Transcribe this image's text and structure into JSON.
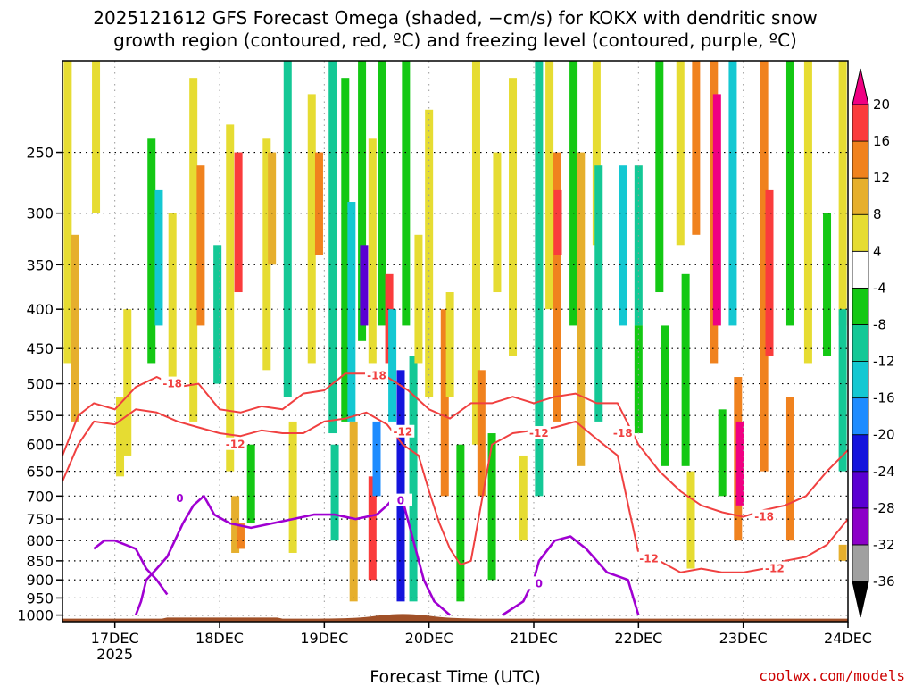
{
  "title": {
    "line1": "2025121612 GFS Forecast Omega (shaded, −cm/s) for KOKX with dendritic snow",
    "line2": "growth region (contoured, red, ºC) and freezing level (contoured, purple, ºC)"
  },
  "credit": "coolwx.com/models",
  "chart_data": {
    "type": "heatmap",
    "title": "2025121612 GFS Forecast Omega (shaded, −cm/s) for KOKX with dendritic snow growth region (contoured, red, ºC) and freezing level (contoured, purple, ºC)",
    "xlabel": "Forecast Time (UTC)",
    "ylabel": "",
    "x_range": [
      16.5,
      24.0
    ],
    "x_ticks": [
      {
        "value": 17,
        "label": "17DEC",
        "sublabel": "2025"
      },
      {
        "value": 18,
        "label": "18DEC",
        "sublabel": ""
      },
      {
        "value": 19,
        "label": "19DEC",
        "sublabel": ""
      },
      {
        "value": 20,
        "label": "20DEC",
        "sublabel": ""
      },
      {
        "value": 21,
        "label": "21DEC",
        "sublabel": ""
      },
      {
        "value": 22,
        "label": "22DEC",
        "sublabel": ""
      },
      {
        "value": 23,
        "label": "23DEC",
        "sublabel": ""
      },
      {
        "value": 24,
        "label": "24DEC",
        "sublabel": ""
      }
    ],
    "y_axis": {
      "type": "pressure",
      "reversed": true,
      "range": [
        1020,
        190
      ],
      "ticks": [
        250,
        300,
        350,
        400,
        450,
        500,
        550,
        600,
        650,
        700,
        750,
        800,
        850,
        900,
        950,
        1000
      ]
    },
    "colorbar": {
      "levels": [
        -36,
        -32,
        -28,
        -24,
        -20,
        -16,
        -12,
        -8,
        -4,
        4,
        8,
        12,
        16,
        20
      ],
      "colors": [
        "#000000",
        "#a0a0a0",
        "#8c00c8",
        "#5a00d2",
        "#1414dc",
        "#1e8cff",
        "#14c8d2",
        "#14c896",
        "#14c814",
        "#ffffff",
        "#e6dc32",
        "#e6af2d",
        "#f0821e",
        "#fa3c3c",
        "#f00082"
      ]
    },
    "omega_cells": [
      {
        "t": 16.55,
        "p1": 190,
        "p2": 470,
        "v": 4
      },
      {
        "t": 16.62,
        "p1": 320,
        "p2": 560,
        "v": 8
      },
      {
        "t": 16.82,
        "p1": 190,
        "p2": 300,
        "v": 4
      },
      {
        "t": 17.05,
        "p1": 520,
        "p2": 660,
        "v": 6
      },
      {
        "t": 17.12,
        "p1": 400,
        "p2": 620,
        "v": 4
      },
      {
        "t": 17.35,
        "p1": 240,
        "p2": 470,
        "v": -8
      },
      {
        "t": 17.42,
        "p1": 280,
        "p2": 420,
        "v": -14
      },
      {
        "t": 17.55,
        "p1": 300,
        "p2": 500,
        "v": 6
      },
      {
        "t": 17.75,
        "p1": 200,
        "p2": 560,
        "v": 6
      },
      {
        "t": 17.82,
        "p1": 260,
        "p2": 420,
        "v": 12
      },
      {
        "t": 17.98,
        "p1": 330,
        "p2": 500,
        "v": -10
      },
      {
        "t": 18.1,
        "p1": 230,
        "p2": 650,
        "v": 6
      },
      {
        "t": 18.18,
        "p1": 250,
        "p2": 380,
        "v": 16
      },
      {
        "t": 18.15,
        "p1": 700,
        "p2": 830,
        "v": 10
      },
      {
        "t": 18.2,
        "p1": 760,
        "p2": 820,
        "v": 14
      },
      {
        "t": 18.3,
        "p1": 600,
        "p2": 760,
        "v": -8
      },
      {
        "t": 18.45,
        "p1": 240,
        "p2": 480,
        "v": 6
      },
      {
        "t": 18.5,
        "p1": 250,
        "p2": 350,
        "v": 10
      },
      {
        "t": 18.65,
        "p1": 190,
        "p2": 520,
        "v": -9
      },
      {
        "t": 18.7,
        "p1": 560,
        "p2": 830,
        "v": 6
      },
      {
        "t": 18.88,
        "p1": 210,
        "p2": 470,
        "v": 6
      },
      {
        "t": 18.95,
        "p1": 250,
        "p2": 340,
        "v": 12
      },
      {
        "t": 19.08,
        "p1": 190,
        "p2": 580,
        "v": -9
      },
      {
        "t": 19.1,
        "p1": 600,
        "p2": 800,
        "v": -12
      },
      {
        "t": 19.2,
        "p1": 200,
        "p2": 560,
        "v": -8
      },
      {
        "t": 19.26,
        "p1": 290,
        "p2": 560,
        "v": -15
      },
      {
        "t": 19.28,
        "p1": 560,
        "p2": 960,
        "v": 8
      },
      {
        "t": 19.36,
        "p1": 190,
        "p2": 440,
        "v": -8
      },
      {
        "t": 19.38,
        "p1": 330,
        "p2": 420,
        "v": -26
      },
      {
        "t": 19.46,
        "p1": 240,
        "p2": 470,
        "v": 6
      },
      {
        "t": 19.46,
        "p1": 660,
        "p2": 900,
        "v": 16
      },
      {
        "t": 19.5,
        "p1": 560,
        "p2": 700,
        "v": -20
      },
      {
        "t": 19.55,
        "p1": 190,
        "p2": 420,
        "v": -8
      },
      {
        "t": 19.62,
        "p1": 360,
        "p2": 470,
        "v": 16
      },
      {
        "t": 19.65,
        "p1": 400,
        "p2": 560,
        "v": -14
      },
      {
        "t": 19.73,
        "p1": 480,
        "p2": 960,
        "v": -22
      },
      {
        "t": 19.78,
        "p1": 190,
        "p2": 420,
        "v": -8
      },
      {
        "t": 19.85,
        "p1": 460,
        "p2": 960,
        "v": -12
      },
      {
        "t": 19.9,
        "p1": 320,
        "p2": 470,
        "v": 6
      },
      {
        "t": 20.0,
        "p1": 220,
        "p2": 520,
        "v": 6
      },
      {
        "t": 20.15,
        "p1": 400,
        "p2": 700,
        "v": 14
      },
      {
        "t": 20.2,
        "p1": 380,
        "p2": 520,
        "v": 6
      },
      {
        "t": 20.3,
        "p1": 600,
        "p2": 960,
        "v": -8
      },
      {
        "t": 20.45,
        "p1": 190,
        "p2": 600,
        "v": 6
      },
      {
        "t": 20.5,
        "p1": 480,
        "p2": 700,
        "v": 12
      },
      {
        "t": 20.6,
        "p1": 580,
        "p2": 900,
        "v": -8
      },
      {
        "t": 20.65,
        "p1": 250,
        "p2": 380,
        "v": 6
      },
      {
        "t": 20.8,
        "p1": 200,
        "p2": 460,
        "v": 6
      },
      {
        "t": 20.9,
        "p1": 620,
        "p2": 800,
        "v": 6
      },
      {
        "t": 21.05,
        "p1": 190,
        "p2": 700,
        "v": -9
      },
      {
        "t": 21.15,
        "p1": 190,
        "p2": 400,
        "v": 6
      },
      {
        "t": 21.22,
        "p1": 250,
        "p2": 560,
        "v": 12
      },
      {
        "t": 21.23,
        "p1": 280,
        "p2": 340,
        "v": 18
      },
      {
        "t": 21.38,
        "p1": 190,
        "p2": 420,
        "v": -8
      },
      {
        "t": 21.45,
        "p1": 250,
        "p2": 640,
        "v": 8
      },
      {
        "t": 21.6,
        "p1": 190,
        "p2": 330,
        "v": 4
      },
      {
        "t": 21.62,
        "p1": 260,
        "p2": 560,
        "v": -9
      },
      {
        "t": 21.85,
        "p1": 260,
        "p2": 420,
        "v": -14
      },
      {
        "t": 22.0,
        "p1": 260,
        "p2": 420,
        "v": -9
      },
      {
        "t": 22.0,
        "p1": 420,
        "p2": 580,
        "v": -8
      },
      {
        "t": 22.2,
        "p1": 190,
        "p2": 380,
        "v": -8
      },
      {
        "t": 22.25,
        "p1": 420,
        "p2": 640,
        "v": -8
      },
      {
        "t": 22.4,
        "p1": 190,
        "p2": 330,
        "v": 6
      },
      {
        "t": 22.45,
        "p1": 360,
        "p2": 640,
        "v": -8
      },
      {
        "t": 22.5,
        "p1": 650,
        "p2": 870,
        "v": 6
      },
      {
        "t": 22.55,
        "p1": 190,
        "p2": 320,
        "v": 12
      },
      {
        "t": 22.72,
        "p1": 190,
        "p2": 470,
        "v": 12
      },
      {
        "t": 22.75,
        "p1": 210,
        "p2": 420,
        "v": 20
      },
      {
        "t": 22.8,
        "p1": 540,
        "p2": 700,
        "v": -8
      },
      {
        "t": 22.9,
        "p1": 190,
        "p2": 420,
        "v": -14
      },
      {
        "t": 22.95,
        "p1": 490,
        "p2": 800,
        "v": 12
      },
      {
        "t": 22.97,
        "p1": 560,
        "p2": 720,
        "v": 20
      },
      {
        "t": 23.2,
        "p1": 190,
        "p2": 650,
        "v": 12
      },
      {
        "t": 23.25,
        "p1": 280,
        "p2": 460,
        "v": 16
      },
      {
        "t": 23.45,
        "p1": 190,
        "p2": 420,
        "v": -8
      },
      {
        "t": 23.45,
        "p1": 520,
        "p2": 800,
        "v": 12
      },
      {
        "t": 23.62,
        "p1": 190,
        "p2": 470,
        "v": 6
      },
      {
        "t": 23.8,
        "p1": 300,
        "p2": 460,
        "v": -8
      },
      {
        "t": 23.95,
        "p1": 190,
        "p2": 420,
        "v": 6
      },
      {
        "t": 23.95,
        "p1": 400,
        "p2": 650,
        "v": -9
      },
      {
        "t": 23.95,
        "p1": 810,
        "p2": 850,
        "v": 10
      }
    ],
    "contours": [
      {
        "name": "dgz-top",
        "level": -18,
        "color": "#f04040",
        "t": [
          16.5,
          16.65,
          16.8,
          17.0,
          17.2,
          17.4,
          17.6,
          17.8,
          18.0,
          18.2,
          18.4,
          18.6,
          18.8,
          19.0,
          19.2,
          19.4,
          19.6,
          19.8,
          20.0,
          20.2,
          20.4,
          20.6,
          20.8,
          21.0,
          21.2,
          21.4,
          21.6,
          21.8,
          22.0,
          22.2,
          22.4,
          22.6,
          22.8,
          23.0,
          23.2,
          23.4,
          23.6,
          23.8,
          24.0
        ],
        "p": [
          620,
          550,
          530,
          540,
          505,
          490,
          505,
          500,
          540,
          545,
          535,
          540,
          515,
          510,
          485,
          485,
          490,
          510,
          540,
          555,
          530,
          530,
          520,
          530,
          520,
          515,
          530,
          530,
          600,
          650,
          690,
          720,
          735,
          745,
          730,
          720,
          700,
          650,
          610
        ]
      },
      {
        "name": "dgz-bottom",
        "level": -12,
        "color": "#f04040",
        "t": [
          16.5,
          16.65,
          16.8,
          17.0,
          17.2,
          17.4,
          17.6,
          17.8,
          18.0,
          18.2,
          18.4,
          18.6,
          18.8,
          19.0,
          19.2,
          19.4,
          19.6,
          19.75,
          19.9,
          20.0,
          20.1,
          20.2,
          20.3,
          20.4,
          20.6,
          20.8,
          21.0,
          21.2,
          21.4,
          21.6,
          21.8,
          22.0,
          22.2,
          22.4,
          22.6,
          22.8,
          23.0,
          23.2,
          23.4,
          23.6,
          23.8,
          24.0
        ],
        "p": [
          670,
          600,
          560,
          565,
          540,
          545,
          560,
          570,
          580,
          585,
          575,
          580,
          580,
          560,
          555,
          545,
          565,
          600,
          620,
          690,
          760,
          820,
          860,
          850,
          600,
          580,
          575,
          570,
          560,
          590,
          620,
          830,
          850,
          880,
          870,
          880,
          880,
          870,
          850,
          840,
          810,
          750
        ]
      },
      {
        "name": "freezing-level",
        "level": 0,
        "color": "#a000d2",
        "t": [
          17.2,
          17.25,
          17.3,
          17.4,
          17.5,
          17.65,
          17.75,
          17.85,
          17.95,
          18.1,
          18.3,
          18.5,
          18.7,
          18.9,
          19.0,
          19.1,
          19.3,
          19.5,
          19.6,
          19.68,
          19.75,
          19.85,
          19.95,
          20.05,
          20.2
        ],
        "p": [
          1000,
          960,
          900,
          870,
          840,
          760,
          720,
          700,
          740,
          760,
          770,
          760,
          750,
          740,
          740,
          740,
          750,
          740,
          720,
          700,
          710,
          800,
          900,
          960,
          1000
        ]
      },
      {
        "name": "freezing-level-2",
        "level": 0,
        "color": "#a000d2",
        "t": [
          16.8,
          16.9,
          17.0,
          17.2,
          17.3,
          17.4,
          17.5
        ],
        "p": [
          820,
          800,
          800,
          820,
          870,
          900,
          940
        ]
      },
      {
        "name": "freezing-level-3",
        "level": 0,
        "color": "#a000d2",
        "t": [
          20.7,
          20.9,
          21.0,
          21.05,
          21.2,
          21.35,
          21.5,
          21.7,
          21.9,
          22.0
        ],
        "p": [
          1000,
          960,
          900,
          850,
          800,
          790,
          820,
          880,
          900,
          1000
        ]
      }
    ],
    "contour_labels": [
      {
        "text": "-18",
        "t": 17.55,
        "p": 500,
        "color": "#f04040"
      },
      {
        "text": "-12",
        "t": 18.15,
        "p": 600,
        "color": "#f04040"
      },
      {
        "text": "-18",
        "t": 19.5,
        "p": 488,
        "color": "#f04040"
      },
      {
        "text": "-12",
        "t": 19.75,
        "p": 578,
        "color": "#f04040"
      },
      {
        "text": "-12",
        "t": 21.05,
        "p": 580,
        "color": "#f04040"
      },
      {
        "text": "-18",
        "t": 21.85,
        "p": 580,
        "color": "#f04040"
      },
      {
        "text": "-12",
        "t": 22.1,
        "p": 845,
        "color": "#f04040"
      },
      {
        "text": "-18",
        "t": 23.2,
        "p": 745,
        "color": "#f04040"
      },
      {
        "text": "-12",
        "t": 23.3,
        "p": 870,
        "color": "#f04040"
      },
      {
        "text": "0",
        "t": 17.62,
        "p": 705,
        "color": "#a000d2"
      },
      {
        "text": "0",
        "t": 19.73,
        "p": 710,
        "color": "#a000d2"
      },
      {
        "text": "0",
        "t": 21.05,
        "p": 910,
        "color": "#a000d2"
      }
    ],
    "terrain_color": "#a05028"
  }
}
